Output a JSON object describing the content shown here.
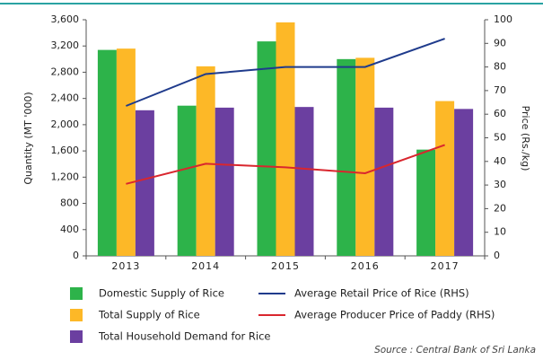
{
  "chart_data": {
    "type": "bar",
    "categories": [
      "2013",
      "2014",
      "2015",
      "2016",
      "2017"
    ],
    "series": [
      {
        "name": "Domestic Supply of Rice",
        "color": "#2db34a",
        "type": "bar",
        "values": [
          3140,
          2290,
          3270,
          3000,
          1620
        ]
      },
      {
        "name": "Total Supply of Rice",
        "color": "#fdb827",
        "type": "bar",
        "values": [
          3160,
          2890,
          3560,
          3020,
          2360
        ]
      },
      {
        "name": "Total Household Demand for Rice",
        "color": "#6b3fa0",
        "type": "bar",
        "values": [
          2220,
          2260,
          2270,
          2260,
          2240
        ]
      },
      {
        "name": "Average Retail Price of Rice (RHS)",
        "color": "#1f3b8c",
        "type": "line",
        "axis": "y2",
        "values": [
          63.5,
          77,
          80,
          80,
          92
        ]
      },
      {
        "name": "Average Producer Price of Paddy (RHS)",
        "color": "#d9262e",
        "type": "line",
        "axis": "y2",
        "values": [
          30.5,
          39,
          37.5,
          35,
          47
        ]
      }
    ],
    "ylabel": "Quantity (MT '000)",
    "y2label": "Price (Rs./kg)",
    "ylim": [
      0,
      3600
    ],
    "yticks": [
      0,
      400,
      800,
      {
        "value": 1200,
        "label": "1,200"
      },
      {
        "value": 1600,
        "label": "1,600"
      },
      {
        "value": 2000,
        "label": "2,000"
      },
      {
        "value": 2400,
        "label": "2,400"
      },
      {
        "value": 2800,
        "label": "2,800"
      },
      {
        "value": 3200,
        "label": "3,200"
      },
      {
        "value": 3600,
        "label": "3,600"
      }
    ],
    "y2lim": [
      0,
      100
    ],
    "y2ticks": [
      0,
      10,
      20,
      30,
      40,
      50,
      60,
      70,
      80,
      90,
      100
    ],
    "grid": false,
    "source": "Source : Central Bank of Sri Lanka"
  }
}
